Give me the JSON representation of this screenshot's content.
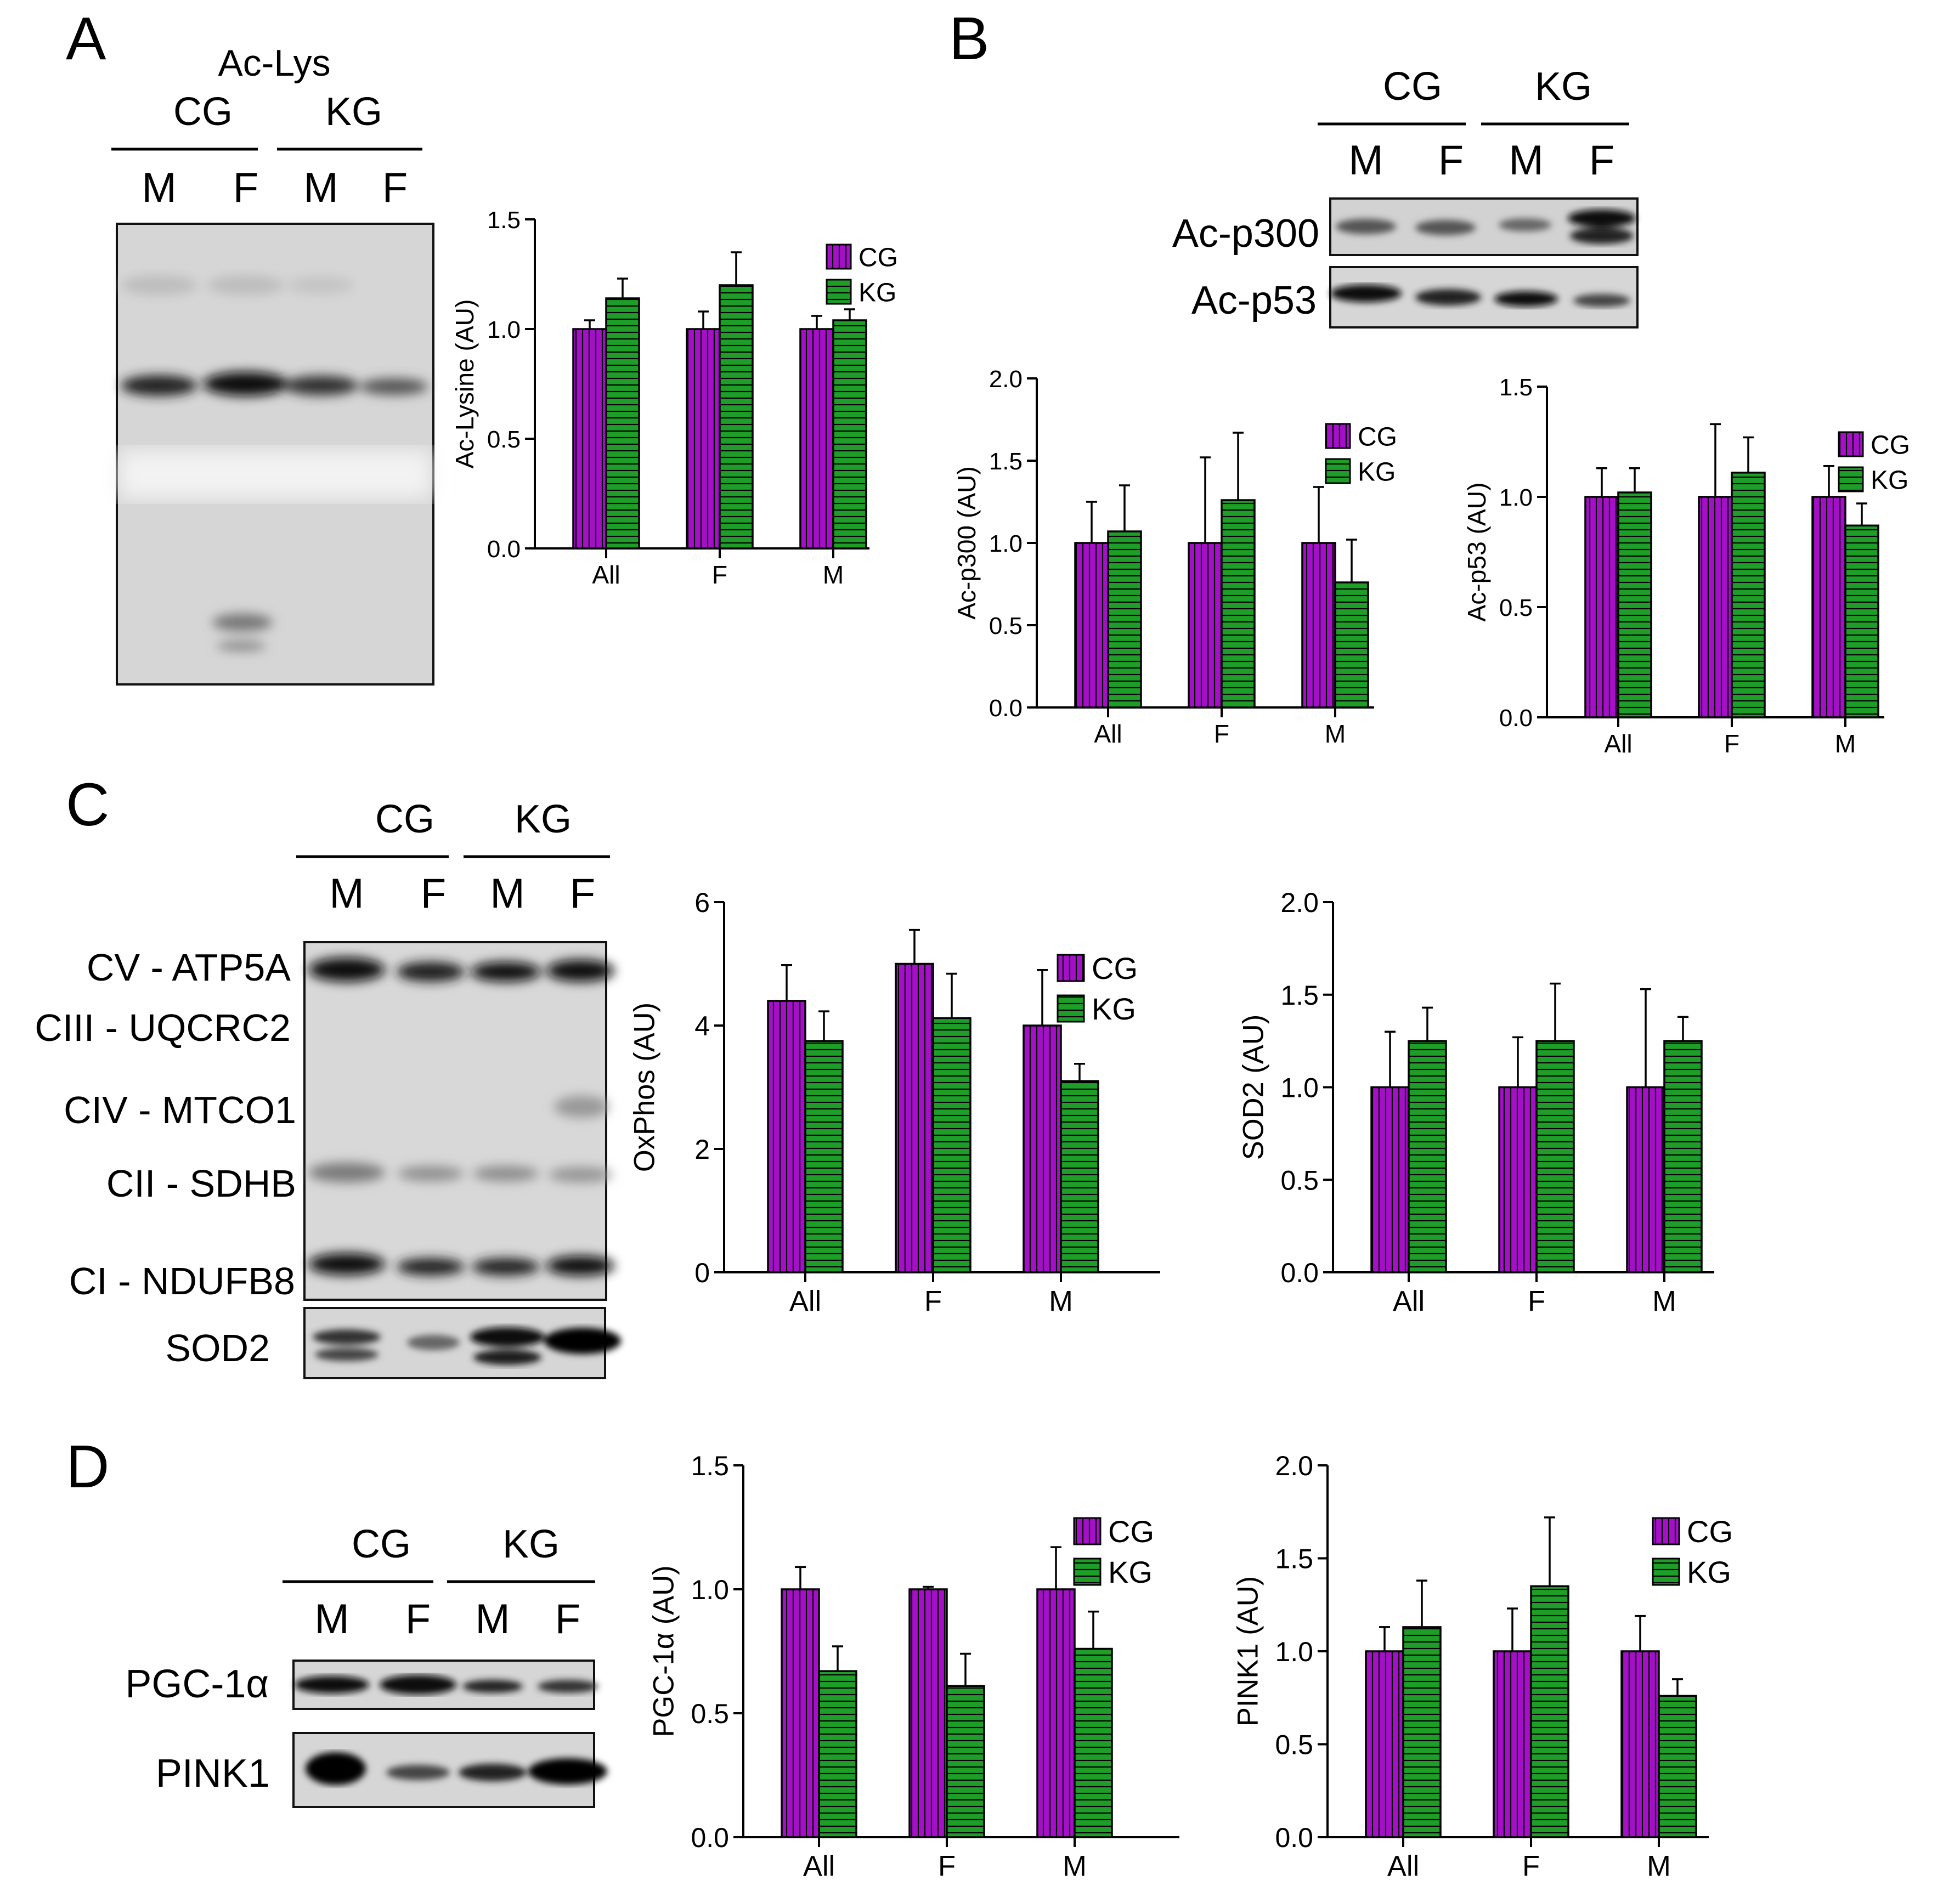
{
  "panels": {
    "A": {
      "letter": "A"
    },
    "B": {
      "letter": "B"
    },
    "C": {
      "letter": "C"
    },
    "D": {
      "letter": "D"
    }
  },
  "blots": {
    "A": {
      "title": "Ac-Lys",
      "groups": [
        "CG",
        "KG"
      ],
      "lanes": [
        "M",
        "F",
        "M",
        "F"
      ]
    },
    "B": {
      "groups": [
        "CG",
        "KG"
      ],
      "lanes": [
        "M",
        "F",
        "M",
        "F"
      ],
      "rows": [
        "Ac-p300",
        "Ac-p53"
      ]
    },
    "C": {
      "groups": [
        "CG",
        "KG"
      ],
      "lanes": [
        "M",
        "F",
        "M",
        "F"
      ],
      "rows": [
        "CV - ATP5A",
        "CIII - UQCRC2",
        "CIV - MTCO1",
        "CII - SDHB",
        "CI - NDUFB8",
        "SOD2"
      ]
    },
    "D": {
      "groups": [
        "CG",
        "KG"
      ],
      "lanes": [
        "M",
        "F",
        "M",
        "F"
      ],
      "rows": [
        "PGC-1α",
        "PINK1"
      ]
    }
  },
  "colors": {
    "CG": "#a50fc8",
    "KG": "#1e9e28"
  },
  "chart_data": [
    {
      "id": "ac-lysine",
      "type": "bar",
      "ylabel": "Ac-Lysine (AU)",
      "categories": [
        "All",
        "F",
        "M"
      ],
      "ylim": [
        0,
        1.5
      ],
      "yticks": [
        "0.0",
        "0.5",
        "1.0",
        "1.5"
      ],
      "legend": "top-right",
      "series": [
        {
          "name": "CG",
          "values": [
            1.0,
            1.0,
            1.0
          ],
          "errors": [
            0.04,
            0.08,
            0.06
          ]
        },
        {
          "name": "KG",
          "values": [
            1.14,
            1.2,
            1.04
          ],
          "errors": [
            0.09,
            0.15,
            0.05
          ]
        }
      ]
    },
    {
      "id": "ac-p300",
      "type": "bar",
      "ylabel": "Ac-p300 (AU)",
      "categories": [
        "All",
        "F",
        "M"
      ],
      "ylim": [
        0,
        2.0
      ],
      "yticks": [
        "0.0",
        "0.5",
        "1.0",
        "1.5",
        "2.0"
      ],
      "legend": "top-right",
      "series": [
        {
          "name": "CG",
          "values": [
            1.0,
            1.0,
            1.0
          ],
          "errors": [
            0.25,
            0.52,
            0.34
          ]
        },
        {
          "name": "KG",
          "values": [
            1.07,
            1.26,
            0.76
          ],
          "errors": [
            0.28,
            0.41,
            0.26
          ]
        }
      ]
    },
    {
      "id": "ac-p53",
      "type": "bar",
      "ylabel": "Ac-p53 (AU)",
      "categories": [
        "All",
        "F",
        "M"
      ],
      "ylim": [
        0,
        1.5
      ],
      "yticks": [
        "0.0",
        "0.5",
        "1.0",
        "1.5"
      ],
      "legend": "top-right",
      "series": [
        {
          "name": "CG",
          "values": [
            1.0,
            1.0,
            1.0
          ],
          "errors": [
            0.13,
            0.33,
            0.14
          ]
        },
        {
          "name": "KG",
          "values": [
            1.02,
            1.11,
            0.87
          ],
          "errors": [
            0.11,
            0.16,
            0.1
          ]
        }
      ]
    },
    {
      "id": "oxphos",
      "type": "bar",
      "ylabel": "OxPhos (AU)",
      "categories": [
        "All",
        "F",
        "M"
      ],
      "ylim": [
        0,
        6
      ],
      "yticks": [
        "0",
        "2",
        "4",
        "6"
      ],
      "legend": "top-right",
      "series": [
        {
          "name": "CG",
          "values": [
            4.4,
            5.0,
            4.0
          ],
          "errors": [
            0.58,
            0.55,
            0.9
          ]
        },
        {
          "name": "KG",
          "values": [
            3.75,
            4.12,
            3.1
          ],
          "errors": [
            0.48,
            0.72,
            0.28
          ]
        }
      ]
    },
    {
      "id": "sod2",
      "type": "bar",
      "ylabel": "SOD2 (AU)",
      "categories": [
        "All",
        "F",
        "M"
      ],
      "ylim": [
        0,
        2.0
      ],
      "yticks": [
        "0.0",
        "0.5",
        "1.0",
        "1.5",
        "2.0"
      ],
      "legend": "none",
      "series": [
        {
          "name": "CG",
          "values": [
            1.0,
            1.0,
            1.0
          ],
          "errors": [
            0.3,
            0.27,
            0.53
          ]
        },
        {
          "name": "KG",
          "values": [
            1.25,
            1.25,
            1.25
          ],
          "errors": [
            0.18,
            0.31,
            0.13
          ]
        }
      ]
    },
    {
      "id": "pgc1a",
      "type": "bar",
      "ylabel": "PGC-1α (AU)",
      "categories": [
        "All",
        "F",
        "M"
      ],
      "ylim": [
        0,
        1.5
      ],
      "yticks": [
        "0.0",
        "0.5",
        "1.0",
        "1.5"
      ],
      "legend": "top-right",
      "series": [
        {
          "name": "CG",
          "values": [
            1.0,
            1.0,
            1.0
          ],
          "errors": [
            0.09,
            0.01,
            0.17
          ]
        },
        {
          "name": "KG",
          "values": [
            0.67,
            0.61,
            0.76
          ],
          "errors": [
            0.1,
            0.13,
            0.15
          ]
        }
      ]
    },
    {
      "id": "pink1",
      "type": "bar",
      "ylabel": "PINK1 (AU)",
      "categories": [
        "All",
        "F",
        "M"
      ],
      "ylim": [
        0,
        2.0
      ],
      "yticks": [
        "0.0",
        "0.5",
        "1.0",
        "1.5",
        "2.0"
      ],
      "legend": "top-right",
      "series": [
        {
          "name": "CG",
          "values": [
            1.0,
            1.0,
            1.0
          ],
          "errors": [
            0.13,
            0.23,
            0.19
          ]
        },
        {
          "name": "KG",
          "values": [
            1.13,
            1.35,
            0.76
          ],
          "errors": [
            0.25,
            0.37,
            0.09
          ]
        }
      ]
    }
  ]
}
